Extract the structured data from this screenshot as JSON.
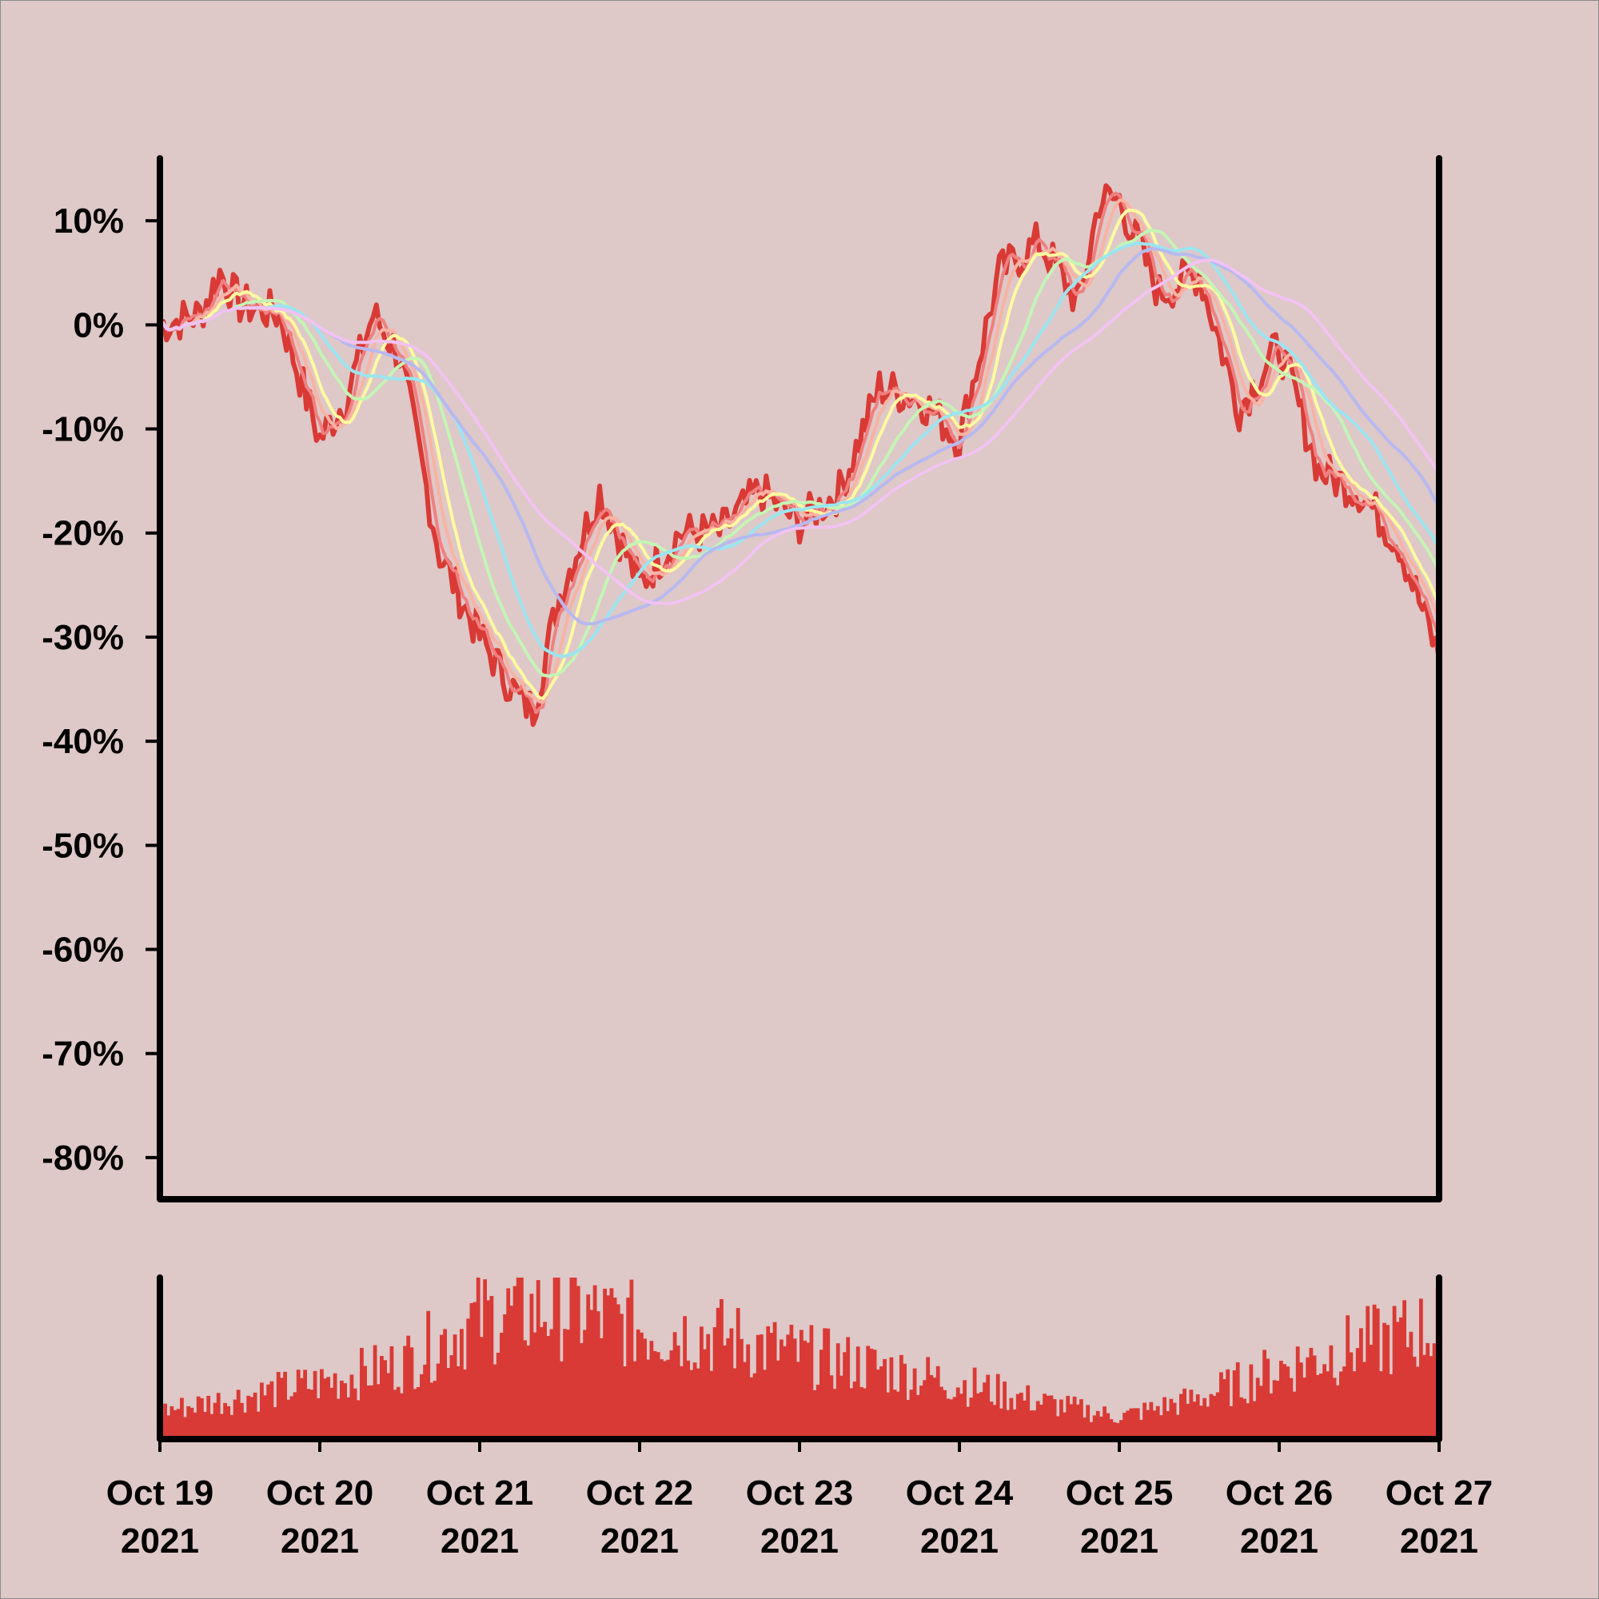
{
  "chart_data": {
    "type": "line",
    "title": "",
    "xlabel": "",
    "ylabel": "",
    "x_range": [
      "2021-10-19",
      "2021-10-27"
    ],
    "x_ticks": [
      {
        "date": "2021-10-19",
        "line1": "Oct 19",
        "line2": "2021"
      },
      {
        "date": "2021-10-20",
        "line1": "Oct 20",
        "line2": "2021"
      },
      {
        "date": "2021-10-21",
        "line1": "Oct 21",
        "line2": "2021"
      },
      {
        "date": "2021-10-22",
        "line1": "Oct 22",
        "line2": "2021"
      },
      {
        "date": "2021-10-23",
        "line1": "Oct 23",
        "line2": "2021"
      },
      {
        "date": "2021-10-24",
        "line1": "Oct 24",
        "line2": "2021"
      },
      {
        "date": "2021-10-25",
        "line1": "Oct 25",
        "line2": "2021"
      },
      {
        "date": "2021-10-26",
        "line1": "Oct 26",
        "line2": "2021"
      },
      {
        "date": "2021-10-27",
        "line1": "Oct 27",
        "line2": "2021"
      }
    ],
    "y_unit": "percent",
    "ylim": [
      -84,
      16
    ],
    "y_ticks": [
      {
        "value": 10,
        "label": "10%"
      },
      {
        "value": 0,
        "label": "0%"
      },
      {
        "value": -10,
        "label": "-10%"
      },
      {
        "value": -20,
        "label": "-20%"
      },
      {
        "value": -30,
        "label": "-30%"
      },
      {
        "value": -40,
        "label": "-40%"
      },
      {
        "value": -50,
        "label": "-50%"
      },
      {
        "value": -60,
        "label": "-60%"
      },
      {
        "value": -70,
        "label": "-70%"
      },
      {
        "value": -80,
        "label": "-80%"
      }
    ],
    "grid": false,
    "legend": "none",
    "main_anchors": [
      [
        "2021-10-19 00:00",
        0
      ],
      [
        "2021-10-19 06:00",
        1
      ],
      [
        "2021-10-19 09:00",
        5
      ],
      [
        "2021-10-19 12:00",
        2
      ],
      [
        "2021-10-19 18:00",
        1
      ],
      [
        "2021-10-20 00:00",
        -11
      ],
      [
        "2021-10-20 04:00",
        -7
      ],
      [
        "2021-10-20 08:00",
        1
      ],
      [
        "2021-10-20 12:00",
        -3
      ],
      [
        "2021-10-20 18:00",
        -22
      ],
      [
        "2021-10-21 00:00",
        -30
      ],
      [
        "2021-10-21 06:00",
        -36
      ],
      [
        "2021-10-21 08:00",
        -37
      ],
      [
        "2021-10-21 12:00",
        -26
      ],
      [
        "2021-10-21 18:00",
        -16
      ],
      [
        "2021-10-22 00:00",
        -25
      ],
      [
        "2021-10-22 06:00",
        -20
      ],
      [
        "2021-10-22 12:00",
        -20
      ],
      [
        "2021-10-22 18:00",
        -16
      ],
      [
        "2021-10-23 00:00",
        -19
      ],
      [
        "2021-10-23 06:00",
        -16
      ],
      [
        "2021-10-23 12:00",
        -6
      ],
      [
        "2021-10-23 18:00",
        -7
      ],
      [
        "2021-10-24 00:00",
        -11
      ],
      [
        "2021-10-24 06:00",
        5
      ],
      [
        "2021-10-24 12:00",
        8
      ],
      [
        "2021-10-24 18:00",
        2
      ],
      [
        "2021-10-24 21:00",
        12
      ],
      [
        "2021-10-25 00:00",
        12
      ],
      [
        "2021-10-25 06:00",
        3
      ],
      [
        "2021-10-25 12:00",
        5
      ],
      [
        "2021-10-25 18:00",
        -8
      ],
      [
        "2021-10-26 00:00",
        -2
      ],
      [
        "2021-10-26 06:00",
        -14
      ],
      [
        "2021-10-26 12:00",
        -16
      ],
      [
        "2021-10-26 18:00",
        -21
      ],
      [
        "2021-10-27 00:00",
        -32
      ]
    ],
    "volume_anchors": [
      [
        "2021-10-19 00:00",
        0.15
      ],
      [
        "2021-10-20 00:00",
        0.3
      ],
      [
        "2021-10-20 12:00",
        0.4
      ],
      [
        "2021-10-21 00:00",
        0.65
      ],
      [
        "2021-10-21 12:00",
        0.7
      ],
      [
        "2021-10-22 00:00",
        0.6
      ],
      [
        "2021-10-22 12:00",
        0.55
      ],
      [
        "2021-10-23 00:00",
        0.45
      ],
      [
        "2021-10-23 12:00",
        0.38
      ],
      [
        "2021-10-24 00:00",
        0.3
      ],
      [
        "2021-10-24 12:00",
        0.2
      ],
      [
        "2021-10-25 00:00",
        0.12
      ],
      [
        "2021-10-25 12:00",
        0.22
      ],
      [
        "2021-10-26 00:00",
        0.38
      ],
      [
        "2021-10-26 12:00",
        0.5
      ],
      [
        "2021-10-27 00:00",
        0.6
      ]
    ],
    "series": [
      {
        "role": "price",
        "color": "#d93a35",
        "width": 6,
        "smooth": 1
      },
      {
        "role": "moving-average",
        "color": "#f08080",
        "width": 4,
        "smooth": 4
      },
      {
        "role": "moving-average",
        "color": "#f8b3a3",
        "width": 4,
        "smooth": 8
      },
      {
        "role": "moving-average",
        "color": "#fffaa0",
        "width": 4,
        "smooth": 12
      },
      {
        "role": "moving-average",
        "color": "#c4f5b5",
        "width": 4,
        "smooth": 22
      },
      {
        "role": "moving-average",
        "color": "#9be5f0",
        "width": 4,
        "smooth": 32
      },
      {
        "role": "moving-average",
        "color": "#b7b9f0",
        "width": 4,
        "smooth": 48
      },
      {
        "role": "moving-average",
        "color": "#f2c2f2",
        "width": 4,
        "smooth": 66
      }
    ],
    "volume": {
      "color": "#d93a35"
    },
    "colors": {
      "background": "#dec8c8",
      "axis": "#000000"
    }
  }
}
